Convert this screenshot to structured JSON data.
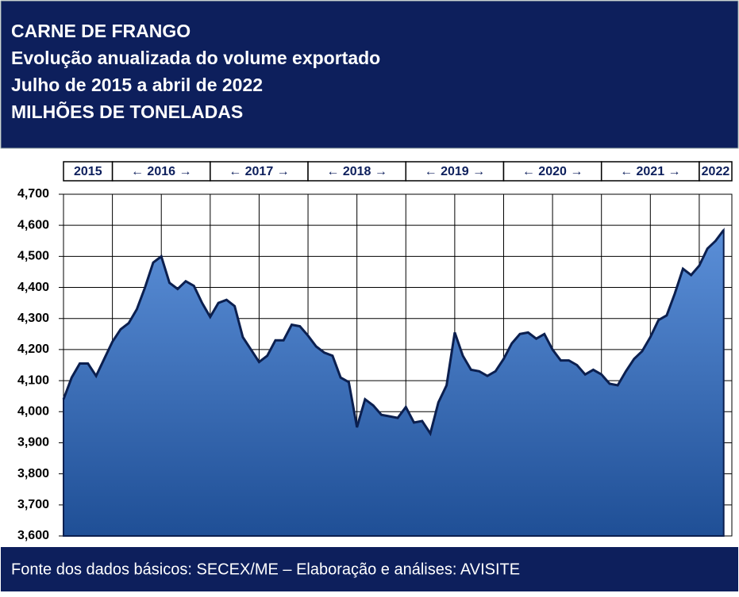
{
  "chart_data": {
    "type": "area",
    "title_lines": [
      "CARNE DE FRANGO",
      "Evolução anualizada do volume exportado",
      "Julho de 2015 a abril de 2022",
      "MILHÕES DE TONELADAS"
    ],
    "year_groups": [
      "2015",
      "← 2016 →",
      "← 2017 →",
      "← 2018 →",
      "← 2019 →",
      "← 2020 →",
      "← 2021 →",
      "2022"
    ],
    "source": "Fonte dos dados básicos: SECEX/ME – Elaboração e análises: AVISITE",
    "categories": [
      null,
      null,
      null,
      null,
      null,
      null,
      null,
      null,
      null,
      null,
      null,
      null,
      null,
      null,
      null,
      null,
      null,
      null,
      null,
      null,
      null,
      null,
      null,
      null,
      null,
      null,
      null,
      null,
      null,
      null,
      null,
      null,
      null,
      null,
      null,
      null,
      null,
      null,
      null,
      null,
      null,
      null,
      null,
      null,
      null,
      null,
      null,
      null,
      null,
      null,
      null,
      null,
      null,
      null,
      null,
      null,
      null,
      null,
      null,
      null,
      null,
      null,
      null,
      null,
      null,
      null,
      null,
      null,
      null,
      null,
      null,
      null,
      null,
      null,
      null,
      null,
      null,
      null,
      null,
      null,
      null,
      null
    ],
    "series": [
      {
        "color": "#0b1f4f",
        "values": [
          4040,
          4110,
          4155,
          4155,
          4115,
          4170,
          4225,
          4265,
          4285,
          4330,
          4400,
          4480,
          4500,
          4415,
          4395,
          4420,
          4405,
          4350,
          4305,
          4350,
          4360,
          4340,
          4240,
          4200,
          4160,
          4180,
          4230,
          4230,
          4280,
          4275,
          4245,
          4210,
          4190,
          4180,
          4110,
          4095,
          3950,
          4040,
          4020,
          3990,
          3985,
          3980,
          4015,
          3965,
          3970,
          3930,
          4030,
          4085,
          4255,
          4180,
          4135,
          4130,
          4115,
          4130,
          4170,
          4220,
          4250,
          4255,
          4235,
          4250,
          4200,
          4165,
          4165,
          4150,
          4120,
          4135,
          4120,
          4090,
          4085,
          4130,
          4170,
          4195,
          4240,
          4295,
          4310,
          4380,
          4460,
          4440,
          4470,
          4525,
          4550,
          4585
        ]
      }
    ],
    "ylim": [
      3600,
      4700
    ],
    "yticks": [
      {
        "value": 3600,
        "label": "3,600"
      },
      {
        "value": 3700,
        "label": "3,700"
      },
      {
        "value": 3800,
        "label": "3,800"
      },
      {
        "value": 3900,
        "label": "3,900"
      },
      {
        "value": 4000,
        "label": "4,000"
      },
      {
        "value": 4100,
        "label": "4,100"
      },
      {
        "value": 4200,
        "label": "4,200"
      },
      {
        "value": 4300,
        "label": "4,300"
      },
      {
        "value": 4400,
        "label": "4,400"
      },
      {
        "value": 4500,
        "label": "4,500"
      },
      {
        "value": 4600,
        "label": "4,600"
      },
      {
        "value": 4700,
        "label": "4,700"
      }
    ],
    "grid": true
  }
}
